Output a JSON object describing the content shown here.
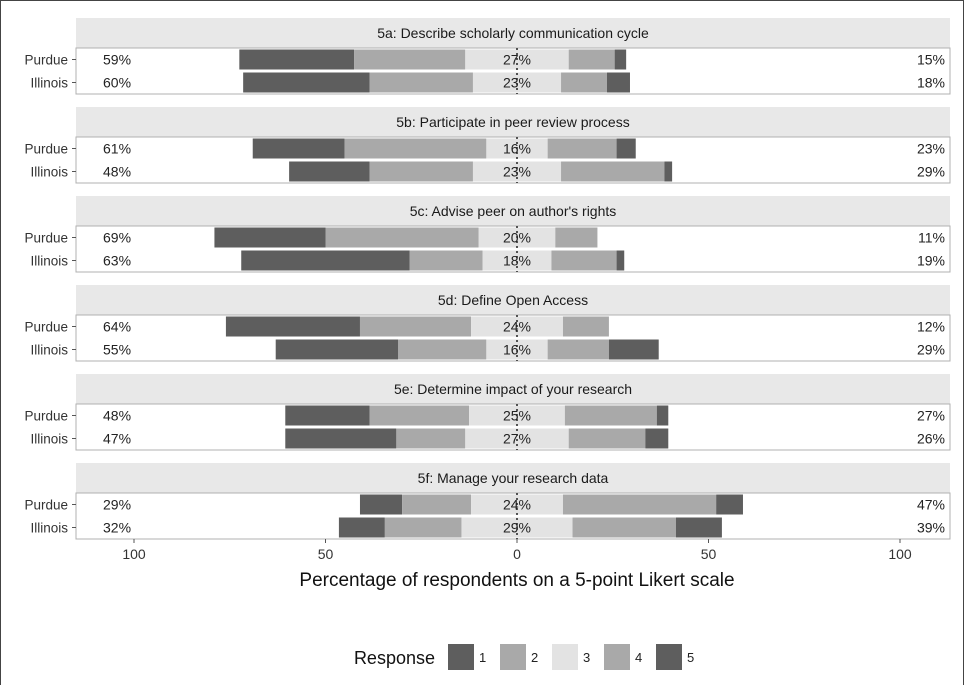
{
  "chart_data": {
    "type": "bar",
    "subtype": "diverging-stacked-likert",
    "xlabel": "Percentage of respondents on a 5-point Likert scale",
    "x_ticks": [
      "100",
      "50",
      "0",
      "50",
      "100"
    ],
    "xlim": [
      -100,
      100
    ],
    "grid": false,
    "legend": {
      "title": "Response",
      "position": "bottom",
      "labels": [
        "1",
        "2",
        "3",
        "4",
        "5"
      ]
    },
    "colors": {
      "1": "#5e5e5e",
      "2": "#a9a9a9",
      "3": "#e3e3e3",
      "4": "#a9a9a9",
      "5": "#5e5e5e",
      "strip_bg": "#e8e8e8",
      "panel_border": "#b0b0b0"
    },
    "panels": [
      {
        "title": "5a: Describe scholarly communication cycle",
        "rows": [
          {
            "label": "Purdue",
            "low_pct": "59%",
            "mid_pct": "27%",
            "high_pct": "15%",
            "values": [
              30,
              29,
              27,
              12,
              3
            ]
          },
          {
            "label": "Illinois",
            "low_pct": "60%",
            "mid_pct": "23%",
            "high_pct": "18%",
            "values": [
              33,
              27,
              23,
              12,
              6
            ]
          }
        ]
      },
      {
        "title": "5b: Participate in peer review process",
        "rows": [
          {
            "label": "Purdue",
            "low_pct": "61%",
            "mid_pct": "16%",
            "high_pct": "23%",
            "values": [
              24,
              37,
              16,
              18,
              5
            ]
          },
          {
            "label": "Illinois",
            "low_pct": "48%",
            "mid_pct": "23%",
            "high_pct": "29%",
            "values": [
              21,
              27,
              23,
              27,
              2
            ]
          }
        ]
      },
      {
        "title": "5c: Advise peer on author's rights",
        "rows": [
          {
            "label": "Purdue",
            "low_pct": "69%",
            "mid_pct": "20%",
            "high_pct": "11%",
            "values": [
              29,
              40,
              20,
              11,
              0
            ]
          },
          {
            "label": "Illinois",
            "low_pct": "63%",
            "mid_pct": "18%",
            "high_pct": "19%",
            "values": [
              44,
              19,
              18,
              17,
              2
            ]
          }
        ]
      },
      {
        "title": "5d: Define Open Access",
        "rows": [
          {
            "label": "Purdue",
            "low_pct": "64%",
            "mid_pct": "24%",
            "high_pct": "12%",
            "values": [
              35,
              29,
              24,
              12,
              0
            ]
          },
          {
            "label": "Illinois",
            "low_pct": "55%",
            "mid_pct": "16%",
            "high_pct": "29%",
            "values": [
              32,
              23,
              16,
              16,
              13
            ]
          }
        ]
      },
      {
        "title": "5e: Determine impact of your research",
        "rows": [
          {
            "label": "Purdue",
            "low_pct": "48%",
            "mid_pct": "25%",
            "high_pct": "27%",
            "values": [
              22,
              26,
              25,
              24,
              3
            ]
          },
          {
            "label": "Illinois",
            "low_pct": "47%",
            "mid_pct": "27%",
            "high_pct": "26%",
            "values": [
              29,
              18,
              27,
              20,
              6
            ]
          }
        ]
      },
      {
        "title": "5f: Manage your research data",
        "rows": [
          {
            "label": "Purdue",
            "low_pct": "29%",
            "mid_pct": "24%",
            "high_pct": "47%",
            "values": [
              11,
              18,
              24,
              40,
              7
            ]
          },
          {
            "label": "Illinois",
            "low_pct": "32%",
            "mid_pct": "29%",
            "high_pct": "39%",
            "values": [
              12,
              20,
              29,
              27,
              12
            ]
          }
        ]
      }
    ]
  }
}
